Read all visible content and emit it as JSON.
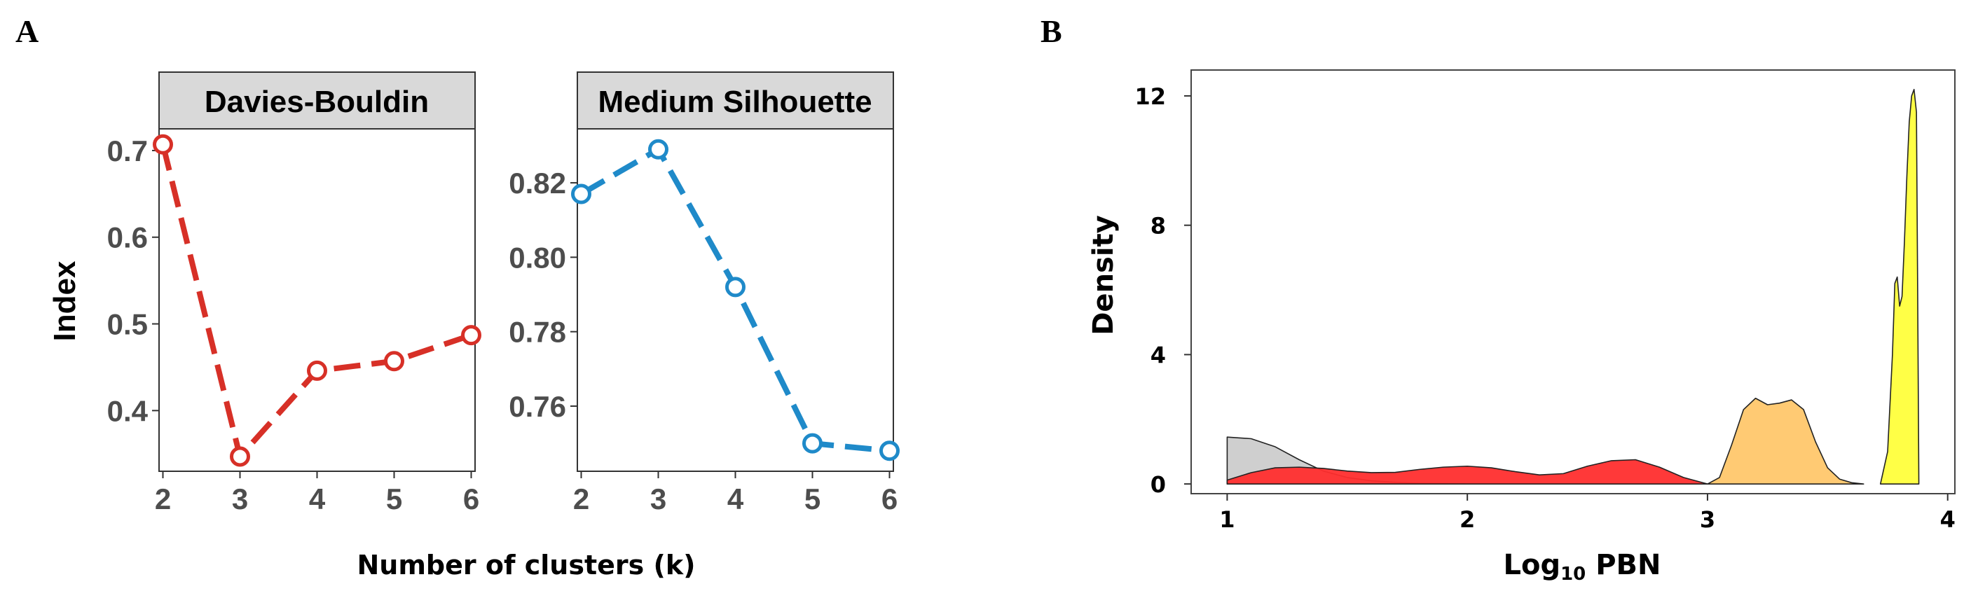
{
  "panels": {
    "a_label": "A",
    "b_label": "B"
  },
  "chart_data": [
    {
      "type": "line",
      "panel": "A",
      "facet": "Davies-Bouldin",
      "x": [
        2,
        3,
        4,
        5,
        6
      ],
      "values": [
        0.707,
        0.347,
        0.446,
        0.457,
        0.487
      ],
      "xticks": [
        "2",
        "3",
        "4",
        "5",
        "6"
      ],
      "yticks": [
        0.4,
        0.5,
        0.6,
        0.7
      ],
      "ytick_labels": [
        "0.4",
        "0.5",
        "0.6",
        "0.7"
      ],
      "xlim": [
        1.95,
        6.05
      ],
      "ylim": [
        0.33,
        0.725
      ],
      "color": "#d73027",
      "ylabel": "Index",
      "xlabel": "Number of clusters (k)",
      "line_style": "dashed",
      "marker": "open-circle"
    },
    {
      "type": "line",
      "panel": "A",
      "facet": "Medium Silhouette",
      "x": [
        2,
        3,
        4,
        5,
        6
      ],
      "values": [
        0.817,
        0.829,
        0.792,
        0.75,
        0.748
      ],
      "xticks": [
        "2",
        "3",
        "4",
        "5",
        "6"
      ],
      "yticks": [
        0.76,
        0.78,
        0.8,
        0.82
      ],
      "ytick_labels": [
        "0.76",
        "0.78",
        "0.80",
        "0.82"
      ],
      "xlim": [
        1.95,
        6.05
      ],
      "ylim": [
        0.7425,
        0.8345
      ],
      "color": "#1f8ac9",
      "line_style": "dashed",
      "marker": "open-circle"
    },
    {
      "type": "area",
      "panel": "B",
      "title": "",
      "xlabel": "Log",
      "xlabel_sub": "10",
      "xlabel_rest": " PBN",
      "ylabel": "Density",
      "xticks": [
        1,
        2,
        3,
        4
      ],
      "yticks": [
        0,
        4,
        8,
        12
      ],
      "xlim": [
        0.85,
        4.03
      ],
      "ylim": [
        -0.3,
        12.8
      ],
      "series": [
        {
          "name": "gray",
          "color": "#cccccc",
          "x": [
            1.0,
            1.1,
            1.2,
            1.3,
            1.4,
            1.5,
            1.6,
            1.7,
            1.8,
            1.9,
            2.0
          ],
          "values": [
            1.45,
            1.4,
            1.15,
            0.75,
            0.4,
            0.2,
            0.1,
            0.05,
            0.02,
            0.01,
            0.0
          ]
        },
        {
          "name": "red",
          "color": "#ff2e2e",
          "x": [
            1.0,
            1.1,
            1.2,
            1.3,
            1.4,
            1.5,
            1.6,
            1.7,
            1.8,
            1.9,
            2.0,
            2.1,
            2.2,
            2.3,
            2.4,
            2.5,
            2.6,
            2.7,
            2.8,
            2.9,
            3.0
          ],
          "values": [
            0.12,
            0.35,
            0.5,
            0.52,
            0.48,
            0.4,
            0.35,
            0.36,
            0.45,
            0.52,
            0.55,
            0.5,
            0.38,
            0.28,
            0.32,
            0.55,
            0.72,
            0.75,
            0.52,
            0.2,
            0.0
          ]
        },
        {
          "name": "orange",
          "color": "#ffc76b",
          "x": [
            3.0,
            3.05,
            3.1,
            3.15,
            3.2,
            3.25,
            3.3,
            3.35,
            3.4,
            3.45,
            3.5,
            3.55,
            3.6,
            3.65
          ],
          "values": [
            0.0,
            0.2,
            1.2,
            2.3,
            2.65,
            2.45,
            2.5,
            2.6,
            2.3,
            1.3,
            0.5,
            0.15,
            0.04,
            0.0
          ]
        },
        {
          "name": "yellow",
          "color": "#ffff3c",
          "x": [
            3.72,
            3.75,
            3.77,
            3.78,
            3.79,
            3.8,
            3.81,
            3.82,
            3.83,
            3.84,
            3.85,
            3.86,
            3.87,
            3.875,
            3.88
          ],
          "values": [
            0.0,
            1.0,
            4.0,
            6.2,
            6.4,
            5.5,
            5.8,
            7.5,
            9.5,
            11.2,
            12.0,
            12.2,
            11.5,
            6.0,
            0.0
          ]
        }
      ]
    }
  ]
}
